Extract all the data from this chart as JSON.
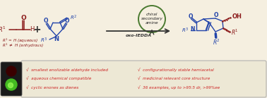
{
  "bg_color": "#f5efe0",
  "dark_red": "#8B1A1A",
  "blue": "#2244aa",
  "green_circle": "#4a7a30",
  "red_bullet": "#cc2222",
  "arrow_color": "#333333",
  "bullet_lines_left": [
    "√  smallest enolizable aldehyde included",
    "√  aqueous chemical compatible",
    "√  cyclic enones as dienes"
  ],
  "bullet_lines_right": [
    "√  configurationally stable hemiacetal",
    "√  medicinal relevant core structure",
    "√  36 examples, up to >95:5 dr, >99%ee"
  ],
  "circle_text_lines": [
    "chiral",
    "secondary",
    "amine"
  ],
  "arrow_label": "oxo-IEDDA"
}
